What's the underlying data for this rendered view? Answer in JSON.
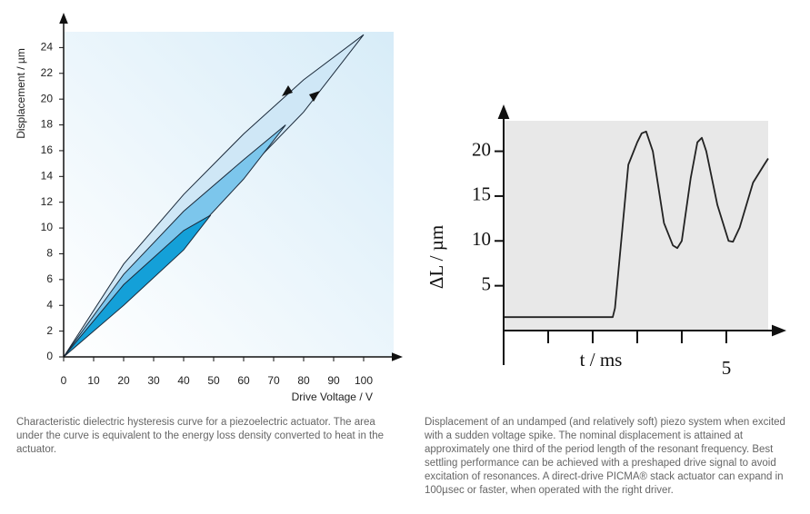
{
  "chart_data": [
    {
      "type": "area",
      "xlabel": "Drive Voltage / V",
      "ylabel": "Displacement / µm",
      "xlim": [
        0,
        110
      ],
      "ylim": [
        0,
        26
      ],
      "xticks": [
        0,
        10,
        20,
        30,
        40,
        50,
        60,
        70,
        80,
        90,
        100
      ],
      "yticks": [
        0,
        2,
        4,
        6,
        8,
        10,
        12,
        14,
        16,
        18,
        20,
        22,
        24
      ],
      "caption": "Characteristic dielectric hysteresis curve for a piezoelectric actuator. The area under the curve is equivalent to the energy loss density converted to heat in the actuator.",
      "series": [
        {
          "color": "#cfe7f6",
          "x": [
            0,
            20,
            40,
            60,
            80,
            100,
            80,
            60,
            40,
            20,
            0
          ],
          "values": [
            0,
            4.8,
            9.6,
            14.2,
            19,
            25,
            21.5,
            17.3,
            12.6,
            7.2,
            0
          ]
        },
        {
          "color": "#7cc6ec",
          "x": [
            0,
            20,
            40,
            60,
            74,
            60,
            40,
            20,
            0
          ],
          "values": [
            0,
            4.4,
            8.8,
            13.8,
            18,
            15.3,
            11.3,
            6.4,
            0
          ]
        },
        {
          "color": "#14a0d8",
          "x": [
            0,
            20,
            40,
            49,
            40,
            20,
            0
          ],
          "values": [
            0,
            4,
            8.3,
            11,
            9.8,
            5.6,
            0
          ]
        }
      ]
    },
    {
      "type": "line",
      "xlabel": "t / ms",
      "ylabel": "ΔL / µm",
      "xlim": [
        0,
        5.94
      ],
      "ylim": [
        0,
        23.4
      ],
      "xticks": [
        5
      ],
      "xtick_marks": [
        1,
        2,
        3,
        4,
        5
      ],
      "yticks": [
        5,
        10,
        15,
        20
      ],
      "caption": "Displacement of an undamped (and relatively soft) piezo system when excited with a sudden voltage spike. The nominal displacement is attained at approximately one third of the period length of the resonant frequency. Best settling performance can be achieved with a preshaped drive signal to avoid excitation of resonances. A direct-drive PICMA® stack actuator can expand in 100µsec or faster, when operated with the right driver.",
      "series": [
        {
          "color": "#222222",
          "x": [
            0,
            2.45,
            2.5,
            2.8,
            3.0,
            3.1,
            3.2,
            3.35,
            3.6,
            3.8,
            3.9,
            4.0,
            4.2,
            4.35,
            4.45,
            4.55,
            4.8,
            5.05,
            5.15,
            5.3,
            5.6,
            5.85,
            5.94
          ],
          "values": [
            1.5,
            1.5,
            2.5,
            18.5,
            21,
            22,
            22.2,
            20,
            12,
            9.5,
            9.2,
            10,
            17,
            21,
            21.5,
            20,
            14,
            10,
            9.9,
            11.5,
            16.5,
            18.5,
            19.2
          ]
        }
      ]
    }
  ]
}
